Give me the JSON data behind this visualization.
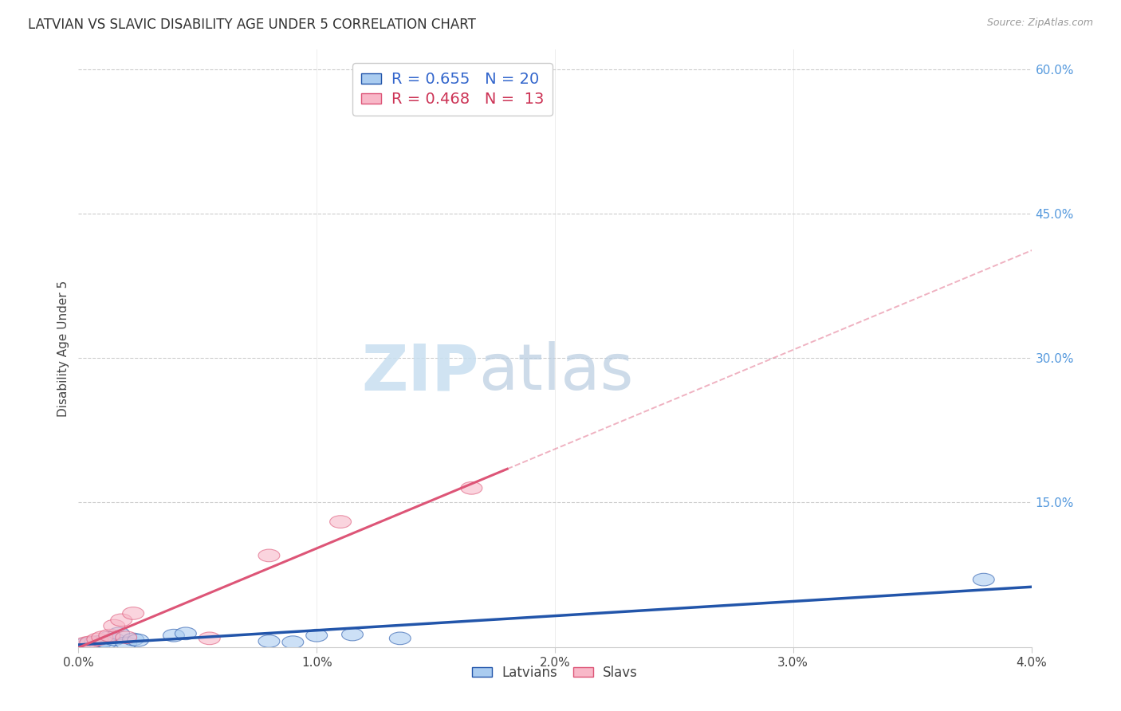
{
  "title": "LATVIAN VS SLAVIC DISABILITY AGE UNDER 5 CORRELATION CHART",
  "source": "Source: ZipAtlas.com",
  "ylabel": "Disability Age Under 5",
  "xlim": [
    0.0,
    0.04
  ],
  "ylim": [
    0.0,
    0.62
  ],
  "xticks": [
    0.0,
    0.01,
    0.02,
    0.03,
    0.04
  ],
  "xtick_labels": [
    "0.0%",
    "1.0%",
    "2.0%",
    "3.0%",
    "4.0%"
  ],
  "ytick_labels_right": [
    "",
    "15.0%",
    "30.0%",
    "45.0%",
    "60.0%"
  ],
  "ytick_positions_right": [
    0.0,
    0.15,
    0.3,
    0.45,
    0.6
  ],
  "latvian_R": 0.655,
  "latvian_N": 20,
  "slavic_R": 0.468,
  "slavic_N": 13,
  "latvian_color": "#aaccf0",
  "slavic_color": "#f8b8c8",
  "latvian_line_color": "#2255aa",
  "slavic_line_color": "#dd5577",
  "latvian_x": [
    0.0003,
    0.0005,
    0.0007,
    0.0009,
    0.001,
    0.0012,
    0.0013,
    0.0015,
    0.0017,
    0.002,
    0.0023,
    0.0025,
    0.004,
    0.0045,
    0.008,
    0.009,
    0.01,
    0.0115,
    0.0135,
    0.038
  ],
  "latvian_y": [
    0.003,
    0.004,
    0.005,
    0.003,
    0.006,
    0.005,
    0.01,
    0.008,
    0.014,
    0.004,
    0.008,
    0.007,
    0.012,
    0.014,
    0.006,
    0.005,
    0.012,
    0.013,
    0.009,
    0.07
  ],
  "slavic_x": [
    0.0003,
    0.0005,
    0.0008,
    0.001,
    0.0013,
    0.0015,
    0.0018,
    0.002,
    0.0023,
    0.0055,
    0.008,
    0.011,
    0.0165
  ],
  "slavic_y": [
    0.004,
    0.005,
    0.008,
    0.01,
    0.012,
    0.022,
    0.028,
    0.01,
    0.035,
    0.009,
    0.095,
    0.13,
    0.165
  ],
  "slavic_line_x_end": 0.018,
  "watermark_text": "ZIPatlas",
  "watermark_color": "#ddeeff",
  "legend_latvians": "Latvians",
  "legend_slavs": "Slavs",
  "background_color": "#ffffff",
  "grid_color": "#cccccc"
}
